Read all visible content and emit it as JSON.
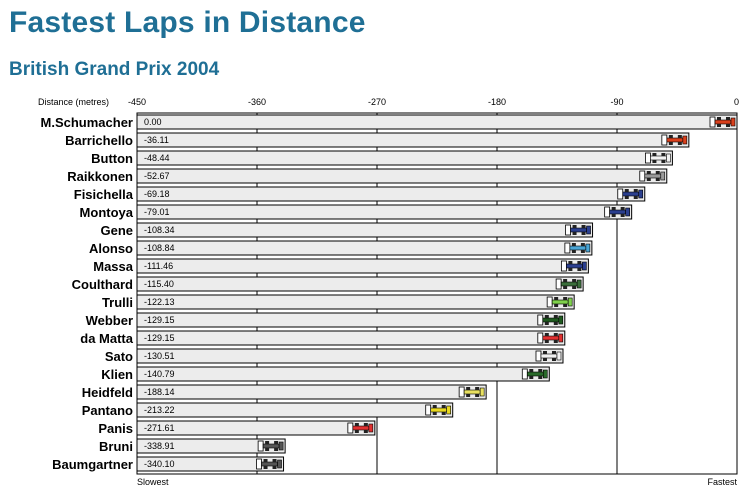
{
  "title": "Fastest Laps in Distance",
  "subtitle": "British Grand Prix 2004",
  "chart_data": {
    "type": "bar",
    "orientation": "horizontal",
    "xlabel": "Distance (metres)",
    "xlim": [
      -450,
      0
    ],
    "ticks": [
      -450,
      -360,
      -270,
      -180,
      -90,
      0
    ],
    "tick_labels": [
      "-450",
      "-360",
      "-270",
      "-180",
      "-90",
      "0"
    ],
    "left_label": "Slowest",
    "right_label": "Fastest",
    "grid": true,
    "categories": [
      "M.Schumacher",
      "Barrichello",
      "Button",
      "Raikkonen",
      "Fisichella",
      "Montoya",
      "Gene",
      "Alonso",
      "Massa",
      "Coulthard",
      "Trulli",
      "Webber",
      "da Matta",
      "Sato",
      "Klien",
      "Heidfeld",
      "Pantano",
      "Panis",
      "Bruni",
      "Baumgartner"
    ],
    "values": [
      0.0,
      -36.11,
      -48.44,
      -52.67,
      -69.18,
      -79.01,
      -108.34,
      -108.84,
      -111.46,
      -115.4,
      -122.13,
      -129.15,
      -129.15,
      -130.51,
      -140.79,
      -188.14,
      -213.22,
      -271.61,
      -338.91,
      -340.1
    ],
    "value_labels": [
      "0.00",
      "-36.11",
      "-48.44",
      "-52.67",
      "-69.18",
      "-79.01",
      "-108.34",
      "-108.84",
      "-111.46",
      "-115.40",
      "-122.13",
      "-129.15",
      "-129.15",
      "-130.51",
      "-140.79",
      "-188.14",
      "-213.22",
      "-271.61",
      "-338.91",
      "-340.10"
    ],
    "car_colors": [
      "#d9401c",
      "#d9401c",
      "#f2f2f2",
      "#9a9a9a",
      "#2b3f8f",
      "#2b3f8f",
      "#2b3f8f",
      "#4aa6d6",
      "#2b3f8f",
      "#3a6e3a",
      "#7fd14c",
      "#1f5a1f",
      "#e03030",
      "#f2f2f2",
      "#2a6a2a",
      "#e8e060",
      "#e8d820",
      "#e03030",
      "#555555",
      "#555555"
    ],
    "bar_fill": "#ececec",
    "bar_stroke": "#000000",
    "car_icon": "f1-car-icon"
  }
}
